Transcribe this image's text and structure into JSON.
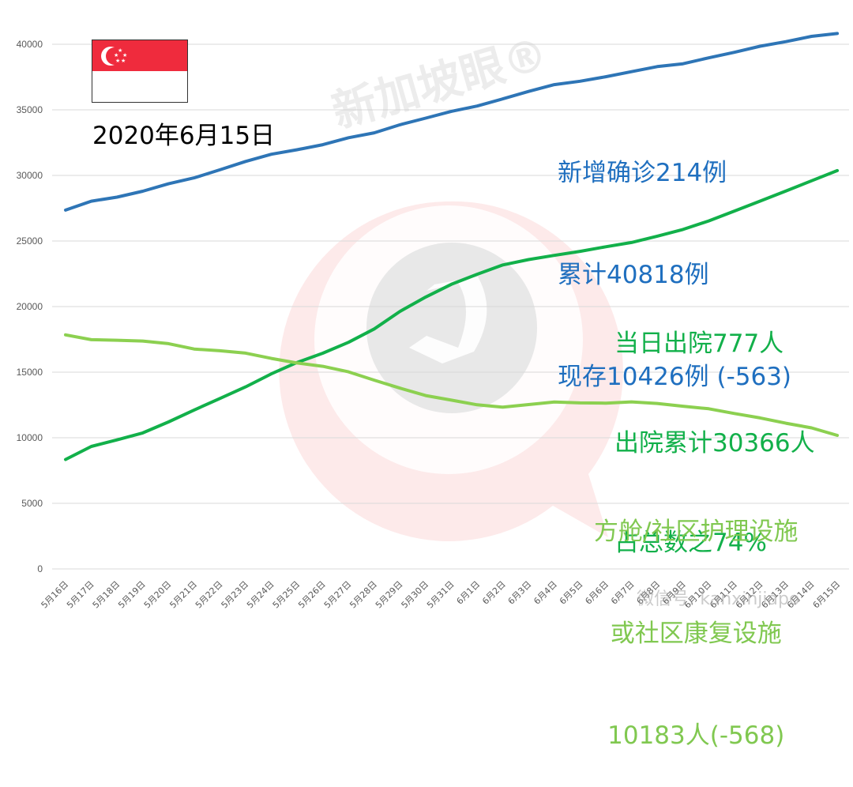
{
  "header": {
    "date": "2020年6月15日",
    "flag": "singapore-flag"
  },
  "annotations": {
    "confirmed": {
      "lines": [
        "新增确诊214例",
        "累计40818例",
        "现存10426例 (-563)"
      ],
      "color": "#1f6fbf"
    },
    "discharged": {
      "lines": [
        "当日出院777人",
        "出院累计30366人",
        "占总数之74%"
      ],
      "color": "#12b04a"
    },
    "facility": {
      "lines": [
        "方舱/社区护理设施",
        "或社区康复设施",
        "10183人(-568)"
      ],
      "color": "#80c850"
    }
  },
  "watermark": {
    "text": "新加坡眼®",
    "footer": "微信号: kanxinjiapo"
  },
  "chart_data": {
    "type": "line",
    "title": "2020年6月15日",
    "xlabel": "",
    "ylabel": "",
    "ylim": [
      0,
      40000
    ],
    "yticks": [
      0,
      5000,
      10000,
      15000,
      20000,
      25000,
      30000,
      35000,
      40000
    ],
    "grid": true,
    "legend": "none (inline annotations)",
    "categories": [
      "5月16日",
      "5月17日",
      "5月18日",
      "5月19日",
      "5月20日",
      "5月21日",
      "5月22日",
      "5月23日",
      "5月24日",
      "5月25日",
      "5月26日",
      "5月27日",
      "5月28日",
      "5月29日",
      "5月30日",
      "5月31日",
      "6月1日",
      "6月2日",
      "6月3日",
      "6月4日",
      "6月5日",
      "6月6日",
      "6月7日",
      "6月8日",
      "6月9日",
      "6月10日",
      "6月11日",
      "6月12日",
      "6月13日",
      "6月14日",
      "6月15日"
    ],
    "series": [
      {
        "name": "累计确诊",
        "color": "#2e75b6",
        "values": [
          27356,
          28038,
          28343,
          28794,
          29364,
          29812,
          30426,
          31068,
          31616,
          31960,
          32343,
          32876,
          33249,
          33860,
          34366,
          34884,
          35292,
          35836,
          36405,
          36922,
          37183,
          37527,
          37910,
          38296,
          38514,
          38965,
          39387,
          39850,
          40197,
          40604,
          40818
        ]
      },
      {
        "name": "出院累计",
        "color": "#12b04a",
        "values": [
          8342,
          9340,
          9835,
          10365,
          11207,
          12117,
          12995,
          13882,
          14876,
          15738,
          16444,
          17276,
          18294,
          19631,
          20727,
          21699,
          22466,
          23175,
          23582,
          23904,
          24209,
          24559,
          24886,
          25368,
          25877,
          26532,
          27286,
          28040,
          28808,
          29589,
          30366
        ]
      },
      {
        "name": "方舱/社区护理设施或社区康复设施",
        "color": "#8cd050",
        "values": [
          17846,
          17473,
          17431,
          17375,
          17176,
          16763,
          16633,
          16450,
          16051,
          15696,
          15446,
          15025,
          14393,
          13783,
          13215,
          12866,
          12511,
          12329,
          12528,
          12723,
          12657,
          12637,
          12735,
          12613,
          12406,
          12213,
          11850,
          11515,
          11109,
          10751,
          10183
        ]
      }
    ]
  }
}
